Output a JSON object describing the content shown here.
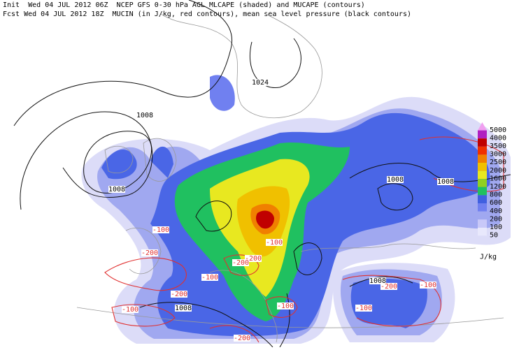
{
  "header": {
    "line1": "Init  Wed 04 JUL 2012 06Z  NCEP GFS 0-30 hPa AGL MLCAPE (shaded) and MUCAPE (contours)",
    "line2": "Fcst Wed 04 JUL 2012 18Z  MUCIN (in J/kg, red contours), mean sea level pressure (black contours)"
  },
  "legend": {
    "unit": "J/kg",
    "levels": [
      {
        "label": "5000",
        "color": "#f0a0f0"
      },
      {
        "label": "4000",
        "color": "#b020c0"
      },
      {
        "label": "3500",
        "color": "#c00000"
      },
      {
        "label": "3000",
        "color": "#f03000"
      },
      {
        "label": "2500",
        "color": "#f08000"
      },
      {
        "label": "2000",
        "color": "#f0c000"
      },
      {
        "label": "1600",
        "color": "#e8e820"
      },
      {
        "label": "1200",
        "color": "#90d020"
      },
      {
        "label": "800",
        "color": "#20c060"
      },
      {
        "label": "600",
        "color": "#4060e0"
      },
      {
        "label": "400",
        "color": "#7080f0"
      },
      {
        "label": "200",
        "color": "#a0a8f0"
      },
      {
        "label": "100",
        "color": "#c8c8f8"
      },
      {
        "label": "50",
        "color": "#e8e8fc"
      }
    ]
  },
  "isobar_labels": [
    "1024",
    "1008",
    "1008",
    "1008",
    "1008",
    "1008",
    "1008"
  ],
  "mucin_labels": [
    "-100",
    "-200",
    "-100",
    "-200",
    "-100",
    "-200",
    "-100",
    "-200",
    "-100",
    "-100",
    "-200",
    "-100",
    "-200"
  ]
}
